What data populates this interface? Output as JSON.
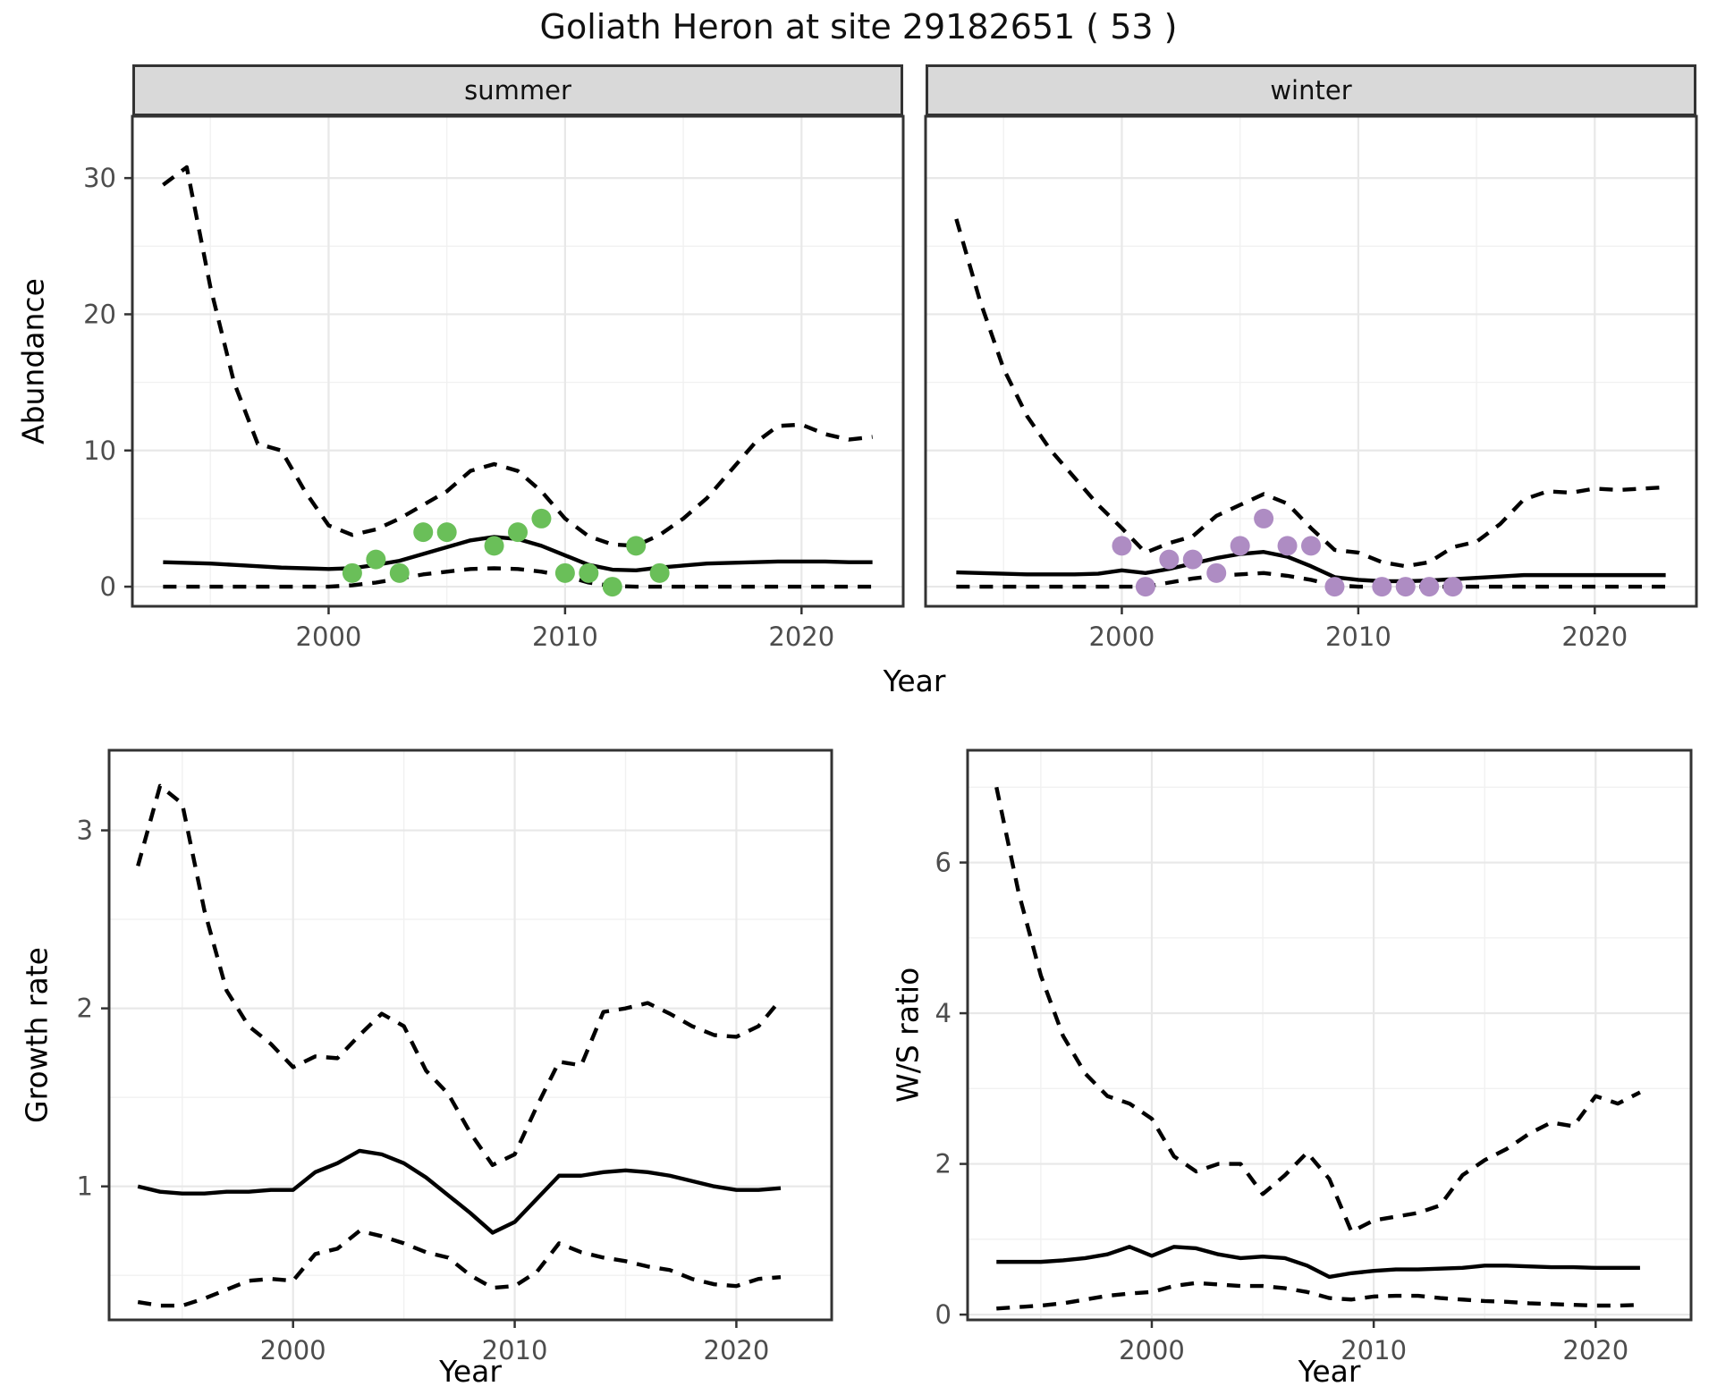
{
  "title": "Goliath Heron at site 29182651 ( 53 )",
  "facets": {
    "summer": "summer",
    "winter": "winter"
  },
  "axis_labels": {
    "abundance": "Abundance",
    "year": "Year",
    "growth": "Growth rate",
    "ws": "W/S ratio"
  },
  "colors": {
    "summer_points": "#6abf59",
    "winter_points": "#ae8cc3",
    "line": "#000000",
    "strip_bg": "#d9d9d9",
    "panel_border": "#333333",
    "grid_major": "#e8e8e8",
    "grid_minor": "#f1f1f1",
    "tick_text": "#4d4d4d"
  },
  "chart_data": [
    {
      "id": "abundance-summer",
      "type": "line",
      "facet_label": "summer",
      "ylabel": "Abundance",
      "xlabel": "Year",
      "legend": "none",
      "grid": true,
      "show_y_axis": true,
      "xlim": [
        1991.7,
        2024.3
      ],
      "ylim": [
        -1.44,
        34.54
      ],
      "xticks": [
        2000,
        2010,
        2020
      ],
      "yticks": [
        0,
        10,
        20,
        30
      ],
      "xticks_minor": [
        1995,
        2005,
        2015
      ],
      "yticks_minor": [
        5,
        15,
        25
      ],
      "x": [
        1993,
        1994,
        1995,
        1996,
        1997,
        1998,
        1999,
        2000,
        2001,
        2002,
        2003,
        2004,
        2005,
        2006,
        2007,
        2008,
        2009,
        2010,
        2011,
        2012,
        2013,
        2014,
        2015,
        2016,
        2017,
        2018,
        2019,
        2020,
        2021,
        2022,
        2023
      ],
      "series": [
        {
          "name": "upper-ci",
          "style": "dashed",
          "values": [
            29.5,
            30.8,
            22,
            15,
            10.5,
            10,
            7,
            4.5,
            3.8,
            4.2,
            5,
            6,
            7,
            8.5,
            9,
            8.5,
            7,
            5,
            3.7,
            3.1,
            3.0,
            3.8,
            5,
            6.5,
            8.5,
            10.5,
            11.8,
            11.9,
            11.2,
            10.8,
            11.0
          ]
        },
        {
          "name": "median",
          "style": "solid",
          "values": [
            1.8,
            1.75,
            1.7,
            1.6,
            1.5,
            1.4,
            1.35,
            1.3,
            1.35,
            1.6,
            1.9,
            2.4,
            2.9,
            3.4,
            3.65,
            3.5,
            3.0,
            2.3,
            1.6,
            1.25,
            1.2,
            1.4,
            1.55,
            1.7,
            1.75,
            1.8,
            1.85,
            1.85,
            1.85,
            1.8,
            1.8
          ]
        },
        {
          "name": "lower-ci",
          "style": "dashed",
          "values": [
            0,
            0,
            0,
            0,
            0,
            0,
            0,
            0,
            0.1,
            0.3,
            0.6,
            0.9,
            1.1,
            1.3,
            1.35,
            1.3,
            1.1,
            0.8,
            0.3,
            0.05,
            0,
            0,
            0,
            0,
            0,
            0,
            0,
            0,
            0,
            0,
            0
          ]
        }
      ],
      "points": {
        "name": "summer-observations",
        "color": "#6abf59",
        "x": [
          2001,
          2002,
          2003,
          2004,
          2005,
          2007,
          2008,
          2009,
          2010,
          2011,
          2012,
          2013,
          2014
        ],
        "y": [
          1,
          2,
          1,
          4,
          4,
          3,
          4,
          5,
          1,
          1,
          0,
          3,
          1
        ]
      }
    },
    {
      "id": "abundance-winter",
      "type": "line",
      "facet_label": "winter",
      "ylabel": "Abundance",
      "xlabel": "Year",
      "legend": "none",
      "grid": true,
      "show_y_axis": false,
      "xlim": [
        1991.7,
        2024.3
      ],
      "ylim": [
        -1.44,
        34.54
      ],
      "xticks": [
        2000,
        2010,
        2020
      ],
      "yticks": [
        0,
        10,
        20,
        30
      ],
      "xticks_minor": [
        1995,
        2005,
        2015
      ],
      "yticks_minor": [
        5,
        15,
        25
      ],
      "x": [
        1993,
        1994,
        1995,
        1996,
        1997,
        1998,
        1999,
        2000,
        2001,
        2002,
        2003,
        2004,
        2005,
        2006,
        2007,
        2008,
        2009,
        2010,
        2011,
        2012,
        2013,
        2014,
        2015,
        2016,
        2017,
        2018,
        2019,
        2020,
        2021,
        2022,
        2023
      ],
      "series": [
        {
          "name": "upper-ci",
          "style": "dashed",
          "values": [
            27,
            21,
            16,
            12.5,
            10,
            8,
            6,
            4.3,
            2.5,
            3.2,
            3.7,
            5.2,
            6.0,
            6.8,
            6.1,
            4.3,
            2.7,
            2.5,
            1.8,
            1.5,
            1.8,
            2.9,
            3.3,
            4.6,
            6.4,
            7.0,
            6.9,
            7.2,
            7.1,
            7.2,
            7.3
          ]
        },
        {
          "name": "median",
          "style": "solid",
          "values": [
            1.05,
            1.0,
            0.95,
            0.9,
            0.9,
            0.9,
            0.95,
            1.2,
            1.0,
            1.3,
            1.7,
            2.1,
            2.4,
            2.55,
            2.2,
            1.5,
            0.7,
            0.5,
            0.4,
            0.4,
            0.45,
            0.55,
            0.65,
            0.75,
            0.85,
            0.85,
            0.85,
            0.85,
            0.85,
            0.85,
            0.85
          ]
        },
        {
          "name": "lower-ci",
          "style": "dashed",
          "values": [
            0,
            0,
            0,
            0,
            0,
            0,
            0,
            0,
            0,
            0.3,
            0.6,
            0.8,
            0.9,
            1.0,
            0.8,
            0.5,
            0.1,
            0,
            0,
            0,
            0,
            0,
            0,
            0,
            0,
            0,
            0,
            0,
            0,
            0,
            0
          ]
        }
      ],
      "points": {
        "name": "winter-observations",
        "color": "#ae8cc3",
        "x": [
          2000,
          2001,
          2002,
          2003,
          2004,
          2005,
          2006,
          2007,
          2008,
          2009,
          2011,
          2012,
          2013,
          2014
        ],
        "y": [
          3,
          0,
          2,
          2,
          1,
          3,
          5,
          3,
          3,
          0,
          0,
          0,
          0,
          0
        ]
      }
    },
    {
      "id": "growth-rate",
      "type": "line",
      "facet_label": "",
      "ylabel": "Growth rate",
      "xlabel": "Year",
      "legend": "none",
      "grid": true,
      "show_y_axis": true,
      "xlim": [
        1991.7,
        2024.3
      ],
      "ylim": [
        0.25,
        3.45
      ],
      "xticks": [
        2000,
        2010,
        2020
      ],
      "yticks": [
        1,
        2,
        3
      ],
      "xticks_minor": [
        1995,
        2005,
        2015
      ],
      "yticks_minor": [
        0.5,
        1.5,
        2.5
      ],
      "x": [
        1993,
        1994,
        1995,
        1996,
        1997,
        1998,
        1999,
        2000,
        2001,
        2002,
        2003,
        2004,
        2005,
        2006,
        2007,
        2008,
        2009,
        2010,
        2011,
        2012,
        2013,
        2014,
        2015,
        2016,
        2017,
        2018,
        2019,
        2020,
        2021,
        2022
      ],
      "series": [
        {
          "name": "upper-ci",
          "style": "dashed",
          "values": [
            2.8,
            3.25,
            3.15,
            2.55,
            2.1,
            1.9,
            1.8,
            1.67,
            1.73,
            1.72,
            1.85,
            1.97,
            1.9,
            1.65,
            1.52,
            1.3,
            1.12,
            1.18,
            1.45,
            1.7,
            1.68,
            1.98,
            2.0,
            2.03,
            1.97,
            1.9,
            1.85,
            1.84,
            1.9,
            2.05
          ]
        },
        {
          "name": "median",
          "style": "solid",
          "values": [
            1.0,
            0.97,
            0.96,
            0.96,
            0.97,
            0.97,
            0.98,
            0.98,
            1.08,
            1.13,
            1.2,
            1.18,
            1.13,
            1.05,
            0.95,
            0.85,
            0.74,
            0.8,
            0.93,
            1.06,
            1.06,
            1.08,
            1.09,
            1.08,
            1.06,
            1.03,
            1.0,
            0.98,
            0.98,
            0.99
          ]
        },
        {
          "name": "lower-ci",
          "style": "dashed",
          "values": [
            0.35,
            0.33,
            0.33,
            0.37,
            0.42,
            0.47,
            0.48,
            0.47,
            0.62,
            0.65,
            0.75,
            0.72,
            0.68,
            0.63,
            0.6,
            0.5,
            0.43,
            0.44,
            0.52,
            0.68,
            0.63,
            0.6,
            0.58,
            0.55,
            0.53,
            0.48,
            0.45,
            0.44,
            0.48,
            0.49
          ]
        }
      ],
      "points": null
    },
    {
      "id": "ws-ratio",
      "type": "line",
      "facet_label": "",
      "ylabel": "W/S ratio",
      "xlabel": "Year",
      "legend": "none",
      "grid": true,
      "show_y_axis": true,
      "xlim": [
        1991.7,
        2024.3
      ],
      "ylim": [
        -0.07,
        7.49
      ],
      "xticks": [
        2000,
        2010,
        2020
      ],
      "yticks": [
        0,
        2,
        4,
        6
      ],
      "xticks_minor": [
        1995,
        2005,
        2015
      ],
      "yticks_minor": [
        1,
        3,
        5,
        7
      ],
      "x": [
        1993,
        1994,
        1995,
        1996,
        1997,
        1998,
        1999,
        2000,
        2001,
        2002,
        2003,
        2004,
        2005,
        2006,
        2007,
        2008,
        2009,
        2010,
        2011,
        2012,
        2013,
        2014,
        2015,
        2016,
        2017,
        2018,
        2019,
        2020,
        2021,
        2022
      ],
      "series": [
        {
          "name": "upper-ci",
          "style": "dashed",
          "values": [
            7.0,
            5.6,
            4.5,
            3.7,
            3.2,
            2.9,
            2.8,
            2.6,
            2.1,
            1.9,
            2.0,
            2.0,
            1.6,
            1.85,
            2.15,
            1.8,
            1.1,
            1.25,
            1.3,
            1.35,
            1.45,
            1.85,
            2.05,
            2.2,
            2.4,
            2.55,
            2.5,
            2.9,
            2.8,
            2.95
          ]
        },
        {
          "name": "median",
          "style": "solid",
          "values": [
            0.7,
            0.7,
            0.7,
            0.72,
            0.75,
            0.8,
            0.9,
            0.78,
            0.9,
            0.88,
            0.8,
            0.75,
            0.77,
            0.75,
            0.65,
            0.5,
            0.55,
            0.58,
            0.6,
            0.6,
            0.61,
            0.62,
            0.65,
            0.65,
            0.64,
            0.63,
            0.63,
            0.62,
            0.62,
            0.62
          ]
        },
        {
          "name": "lower-ci",
          "style": "dashed",
          "values": [
            0.08,
            0.1,
            0.12,
            0.15,
            0.2,
            0.25,
            0.28,
            0.3,
            0.38,
            0.42,
            0.4,
            0.38,
            0.38,
            0.35,
            0.3,
            0.22,
            0.2,
            0.24,
            0.25,
            0.25,
            0.22,
            0.2,
            0.18,
            0.17,
            0.15,
            0.14,
            0.13,
            0.12,
            0.12,
            0.13
          ]
        }
      ],
      "points": null
    }
  ]
}
